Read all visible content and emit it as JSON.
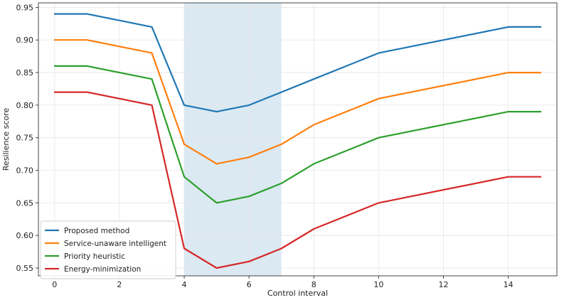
{
  "chart_data": {
    "type": "line",
    "xlabel": "Control interval",
    "ylabel": "Resilience score",
    "xlim": [
      -0.5,
      15.5
    ],
    "ylim": [
      0.538,
      0.957
    ],
    "xticks": [
      0,
      2,
      4,
      6,
      8,
      10,
      12,
      14
    ],
    "yticks": [
      0.55,
      0.6,
      0.65,
      0.7,
      0.75,
      0.8,
      0.85,
      0.9,
      0.95
    ],
    "ytick_labels": [
      "0.55",
      "0.60",
      "0.65",
      "0.70",
      "0.75",
      "0.80",
      "0.85",
      "0.90",
      "0.95"
    ],
    "grid": true,
    "legend_position": "lower-left",
    "highlight_span": {
      "x_start": 4,
      "x_end": 7,
      "color": "#dbe9f3"
    },
    "x": [
      0,
      1,
      3,
      4,
      5,
      6,
      7,
      8,
      10,
      14,
      15
    ],
    "series": [
      {
        "name": "Proposed method",
        "color": "#1f77b4",
        "values": [
          0.94,
          0.94,
          0.92,
          0.8,
          0.79,
          0.8,
          0.82,
          0.84,
          0.88,
          0.92,
          0.92
        ]
      },
      {
        "name": "Service-unaware intelligent",
        "color": "#ff7f0e",
        "values": [
          0.9,
          0.9,
          0.88,
          0.74,
          0.71,
          0.72,
          0.74,
          0.77,
          0.81,
          0.85,
          0.85
        ]
      },
      {
        "name": "Priority heuristic",
        "color": "#2ca02c",
        "values": [
          0.86,
          0.86,
          0.84,
          0.69,
          0.65,
          0.66,
          0.68,
          0.71,
          0.75,
          0.79,
          0.79
        ]
      },
      {
        "name": "Energy-minimization",
        "color": "#d62728",
        "values": [
          0.82,
          0.82,
          0.8,
          0.58,
          0.55,
          0.56,
          0.58,
          0.61,
          0.65,
          0.69,
          0.69
        ]
      }
    ]
  }
}
